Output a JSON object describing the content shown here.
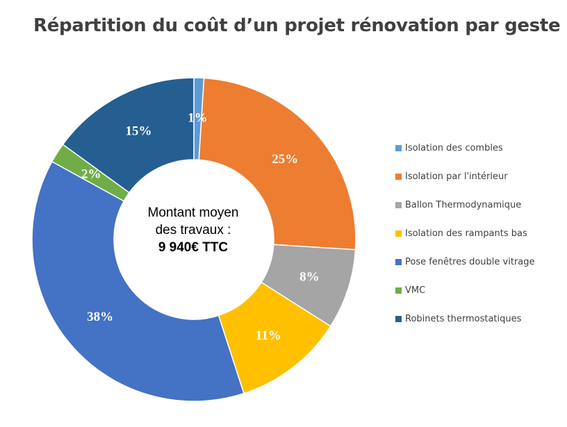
{
  "chart_data": {
    "type": "pie",
    "variant": "donut",
    "title": "Répartition du coût d’un projet rénovation par geste",
    "center_label": {
      "line1": "Montant moyen",
      "line2": "des travaux :",
      "amount": "9 940€ TTC"
    },
    "legend_position": "right",
    "slices": [
      {
        "name": "Isolation des combles",
        "value": 1,
        "label": "1%",
        "color": "#5B9BD5"
      },
      {
        "name": "Isolation par l'intérieur",
        "value": 25,
        "label": "25%",
        "color": "#ED7D31"
      },
      {
        "name": "Ballon Thermodynamique",
        "value": 8,
        "label": "8%",
        "color": "#A5A5A5"
      },
      {
        "name": "Isolation des rampants bas",
        "value": 11,
        "label": "11%",
        "color": "#FFC000"
      },
      {
        "name": "Pose fenêtres double vitrage",
        "value": 38,
        "label": "38%",
        "color": "#4472C4"
      },
      {
        "name": "VMC",
        "value": 2,
        "label": "2%",
        "color": "#70AD47"
      },
      {
        "name": "Robinets thermostatiques",
        "value": 15,
        "label": "15%",
        "color": "#255E91"
      }
    ]
  }
}
